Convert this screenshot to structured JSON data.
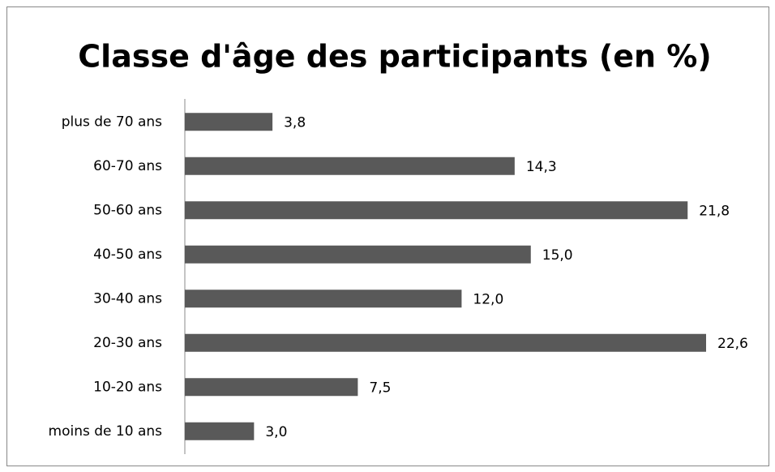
{
  "chart_data": {
    "type": "hbar",
    "title": "Classe d'âge des participants (en %)",
    "categories": [
      "plus de 70 ans",
      "60-70 ans",
      "50-60 ans",
      "40-50 ans",
      "30-40 ans",
      "20-30 ans",
      "10-20 ans",
      "moins de 10 ans"
    ],
    "values": [
      3.8,
      14.3,
      21.8,
      15.0,
      12.0,
      22.6,
      7.5,
      3.0
    ],
    "value_labels": [
      "3,8",
      "14,3",
      "21,8",
      "15,0",
      "12,0",
      "22,6",
      "7,5",
      "3,0"
    ],
    "color": "#595959"
  }
}
